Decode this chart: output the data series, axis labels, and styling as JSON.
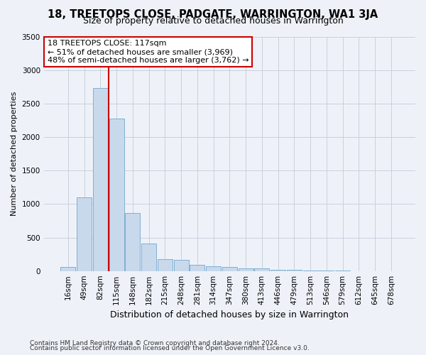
{
  "title": "18, TREETOPS CLOSE, PADGATE, WARRINGTON, WA1 3JA",
  "subtitle": "Size of property relative to detached houses in Warrington",
  "xlabel": "Distribution of detached houses by size in Warrington",
  "ylabel": "Number of detached properties",
  "categories": [
    "16sqm",
    "49sqm",
    "82sqm",
    "115sqm",
    "148sqm",
    "182sqm",
    "215sqm",
    "248sqm",
    "281sqm",
    "314sqm",
    "347sqm",
    "380sqm",
    "413sqm",
    "446sqm",
    "479sqm",
    "513sqm",
    "546sqm",
    "579sqm",
    "612sqm",
    "645sqm",
    "678sqm"
  ],
  "values": [
    55,
    1100,
    2730,
    2280,
    870,
    415,
    175,
    165,
    90,
    70,
    55,
    40,
    35,
    20,
    20,
    10,
    5,
    5,
    0,
    0,
    0
  ],
  "bar_color": "#c9d9ec",
  "bar_edge_color": "#7fafd4",
  "grid_color": "#c8d0dc",
  "bg_color": "#eef2f8",
  "vline_color": "#cc0000",
  "annotation_text": "18 TREETOPS CLOSE: 117sqm\n← 51% of detached houses are smaller (3,969)\n48% of semi-detached houses are larger (3,762) →",
  "annotation_box_color": "#ffffff",
  "annotation_box_edge": "#cc0000",
  "footnote1": "Contains HM Land Registry data © Crown copyright and database right 2024.",
  "footnote2": "Contains public sector information licensed under the Open Government Licence v3.0.",
  "ylim": [
    0,
    3500
  ],
  "yticks": [
    0,
    500,
    1000,
    1500,
    2000,
    2500,
    3000,
    3500
  ],
  "title_fontsize": 10.5,
  "subtitle_fontsize": 9,
  "ylabel_fontsize": 8,
  "xlabel_fontsize": 9,
  "tick_fontsize": 7.5,
  "footnote_fontsize": 6.5
}
